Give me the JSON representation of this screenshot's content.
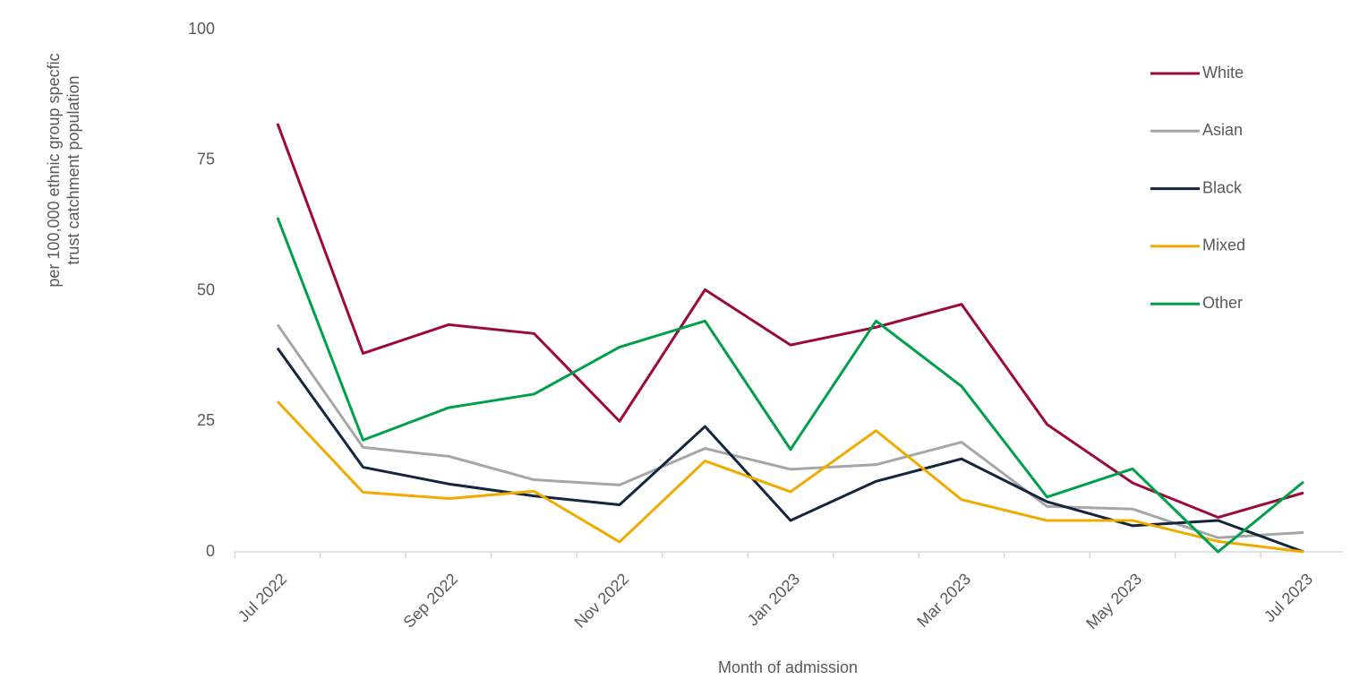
{
  "chart_data": {
    "type": "line",
    "y_label": [
      "per 100,000 ethnic group specfic",
      "trust catchment  population"
    ],
    "x_label": "Month of admission",
    "categories": [
      "Jul 2022",
      null,
      "Sep 2022",
      null,
      "Nov 2022",
      null,
      "Jan 2023",
      null,
      "Mar 2023",
      null,
      "May 2023",
      null,
      "Jul 2023"
    ],
    "series": [
      {
        "name": "White",
        "color": "#9b0a3a",
        "values": [
          82,
          38,
          43.5,
          41.8,
          25,
          50.2,
          39.6,
          43,
          47.4,
          24.4,
          13.2,
          6.6,
          11.3
        ]
      },
      {
        "name": "Asian",
        "color": "#a6a6a6",
        "values": [
          43.5,
          20,
          18.3,
          13.8,
          12.8,
          19.8,
          15.8,
          16.7,
          21,
          8.7,
          8.2,
          2.7,
          3.7
        ]
      },
      {
        "name": "Black",
        "color": "#14253e",
        "values": [
          39,
          16.2,
          13,
          10.7,
          9,
          24,
          6,
          13.5,
          17.8,
          9.6,
          5,
          6,
          0
        ]
      },
      {
        "name": "Mixed",
        "color": "#f0ab00",
        "values": [
          28.8,
          11.4,
          10.2,
          11.6,
          1.9,
          17.4,
          11.5,
          23.2,
          10,
          6,
          6,
          2,
          0
        ]
      },
      {
        "name": "Other",
        "color": "#00a04b",
        "values": [
          64,
          21.4,
          27.6,
          30.2,
          39.2,
          44.2,
          19.6,
          44.2,
          31.7,
          10.5,
          15.9,
          0,
          13.4
        ]
      }
    ],
    "ylim": [
      0,
      100
    ],
    "yticks": [
      0,
      25,
      50,
      75,
      100
    ],
    "grid": false,
    "legend": "right"
  }
}
